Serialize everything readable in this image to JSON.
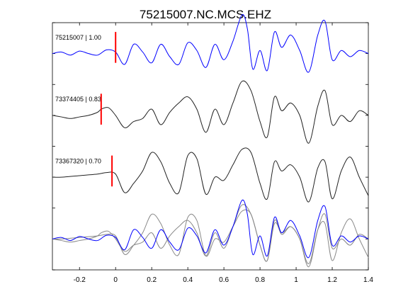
{
  "chart_data": {
    "type": "line",
    "title": "75215007.NC.MCS.EHZ",
    "xlabel": "",
    "ylabel": "",
    "xlim": [
      -0.35,
      1.4
    ],
    "ylim": [
      0,
      8
    ],
    "x_ticks": [
      -0.2,
      0,
      0.2,
      0.4,
      0.6,
      0.8,
      1,
      1.2,
      1.4
    ],
    "x_tick_labels": [
      "-0.2",
      "0",
      "0.2",
      "0.4",
      "0.6",
      "0.8",
      "1",
      "1.2",
      "1.4"
    ],
    "y_tick_count": 9,
    "grid": false,
    "legend": "none",
    "colors": {
      "primary": "#0000ff",
      "secondary": "#222222",
      "overlay": "#888888",
      "pick": "#ff0000"
    },
    "traces": [
      {
        "label": "75215007 | 1.00",
        "color": "#0000ff",
        "baseline": 7.0,
        "pick_time": 0.0,
        "points": [
          [
            -0.35,
            0.0
          ],
          [
            -0.3,
            0.05
          ],
          [
            -0.25,
            -0.05
          ],
          [
            -0.2,
            0.08
          ],
          [
            -0.15,
            0.0
          ],
          [
            -0.1,
            -0.05
          ],
          [
            -0.05,
            0.12
          ],
          [
            0.0,
            0.05
          ],
          [
            0.05,
            -0.35
          ],
          [
            0.1,
            0.3
          ],
          [
            0.15,
            0.05
          ],
          [
            0.2,
            -0.3
          ],
          [
            0.25,
            0.3
          ],
          [
            0.3,
            -0.1
          ],
          [
            0.35,
            -0.35
          ],
          [
            0.4,
            0.35
          ],
          [
            0.45,
            0.1
          ],
          [
            0.5,
            -0.45
          ],
          [
            0.55,
            0.3
          ],
          [
            0.6,
            -0.2
          ],
          [
            0.65,
            0.4
          ],
          [
            0.7,
            1.25
          ],
          [
            0.73,
            0.8
          ],
          [
            0.76,
            -0.5
          ],
          [
            0.8,
            0.1
          ],
          [
            0.84,
            -0.55
          ],
          [
            0.88,
            0.7
          ],
          [
            0.92,
            0.2
          ],
          [
            0.97,
            0.6
          ],
          [
            1.02,
            0.1
          ],
          [
            1.07,
            -0.6
          ],
          [
            1.12,
            0.6
          ],
          [
            1.16,
            1.05
          ],
          [
            1.2,
            -0.2
          ],
          [
            1.25,
            0.1
          ],
          [
            1.3,
            -0.1
          ],
          [
            1.35,
            0.1
          ],
          [
            1.4,
            0.0
          ]
        ]
      },
      {
        "label": "73374405 | 0.83",
        "color": "#222222",
        "baseline": 5.0,
        "pick_time": -0.08,
        "points": [
          [
            -0.35,
            0.0
          ],
          [
            -0.3,
            -0.05
          ],
          [
            -0.25,
            -0.1
          ],
          [
            -0.2,
            -0.05
          ],
          [
            -0.15,
            0.0
          ],
          [
            -0.1,
            0.1
          ],
          [
            -0.08,
            0.2
          ],
          [
            -0.04,
            0.25
          ],
          [
            0.0,
            0.0
          ],
          [
            0.05,
            -0.4
          ],
          [
            0.1,
            -0.2
          ],
          [
            0.15,
            -0.1
          ],
          [
            0.2,
            0.2
          ],
          [
            0.25,
            -0.3
          ],
          [
            0.3,
            0.1
          ],
          [
            0.35,
            0.4
          ],
          [
            0.4,
            0.6
          ],
          [
            0.45,
            0.2
          ],
          [
            0.5,
            -0.55
          ],
          [
            0.55,
            0.2
          ],
          [
            0.6,
            -0.3
          ],
          [
            0.65,
            0.4
          ],
          [
            0.7,
            1.1
          ],
          [
            0.75,
            0.8
          ],
          [
            0.8,
            -0.2
          ],
          [
            0.84,
            -0.7
          ],
          [
            0.88,
            0.6
          ],
          [
            0.92,
            0.15
          ],
          [
            0.97,
            0.4
          ],
          [
            1.02,
            0.0
          ],
          [
            1.07,
            -0.9
          ],
          [
            1.12,
            0.3
          ],
          [
            1.16,
            0.8
          ],
          [
            1.2,
            -0.3
          ],
          [
            1.25,
            0.0
          ],
          [
            1.3,
            -0.2
          ],
          [
            1.35,
            0.15
          ],
          [
            1.4,
            0.0
          ]
        ]
      },
      {
        "label": "73367320 | 0.70",
        "color": "#222222",
        "baseline": 3.0,
        "pick_time": -0.02,
        "points": [
          [
            -0.35,
            0.0
          ],
          [
            -0.3,
            0.0
          ],
          [
            -0.2,
            0.05
          ],
          [
            -0.1,
            0.1
          ],
          [
            -0.05,
            0.15
          ],
          [
            0.0,
            0.1
          ],
          [
            0.05,
            -0.5
          ],
          [
            0.1,
            -0.2
          ],
          [
            0.15,
            0.2
          ],
          [
            0.2,
            0.8
          ],
          [
            0.25,
            0.5
          ],
          [
            0.3,
            -0.2
          ],
          [
            0.35,
            -0.5
          ],
          [
            0.4,
            0.7
          ],
          [
            0.45,
            0.6
          ],
          [
            0.5,
            -0.55
          ],
          [
            0.55,
            0.0
          ],
          [
            0.6,
            -0.1
          ],
          [
            0.65,
            0.4
          ],
          [
            0.7,
            0.9
          ],
          [
            0.75,
            0.8
          ],
          [
            0.8,
            -0.2
          ],
          [
            0.84,
            -0.7
          ],
          [
            0.88,
            0.5
          ],
          [
            0.92,
            0.2
          ],
          [
            0.97,
            0.4
          ],
          [
            1.02,
            0.0
          ],
          [
            1.07,
            -0.8
          ],
          [
            1.12,
            0.3
          ],
          [
            1.16,
            0.5
          ],
          [
            1.2,
            -0.7
          ],
          [
            1.25,
            0.2
          ],
          [
            1.3,
            0.65
          ],
          [
            1.35,
            0.0
          ],
          [
            1.4,
            -0.6
          ]
        ]
      },
      {
        "label": "",
        "color": "#0000ff",
        "baseline": 1.0,
        "pick_time": null,
        "points": [
          [
            -0.35,
            0.0
          ],
          [
            -0.3,
            0.05
          ],
          [
            -0.25,
            -0.05
          ],
          [
            -0.2,
            0.08
          ],
          [
            -0.15,
            0.0
          ],
          [
            -0.1,
            -0.05
          ],
          [
            -0.05,
            0.12
          ],
          [
            0.0,
            0.05
          ],
          [
            0.05,
            -0.35
          ],
          [
            0.1,
            0.3
          ],
          [
            0.15,
            0.05
          ],
          [
            0.2,
            -0.3
          ],
          [
            0.25,
            0.3
          ],
          [
            0.3,
            -0.1
          ],
          [
            0.35,
            -0.35
          ],
          [
            0.4,
            0.35
          ],
          [
            0.45,
            0.1
          ],
          [
            0.5,
            -0.45
          ],
          [
            0.55,
            0.3
          ],
          [
            0.6,
            -0.2
          ],
          [
            0.65,
            0.4
          ],
          [
            0.7,
            1.25
          ],
          [
            0.73,
            0.8
          ],
          [
            0.76,
            -0.5
          ],
          [
            0.8,
            0.1
          ],
          [
            0.84,
            -0.55
          ],
          [
            0.88,
            0.7
          ],
          [
            0.92,
            0.2
          ],
          [
            0.97,
            0.6
          ],
          [
            1.02,
            0.1
          ],
          [
            1.07,
            -0.6
          ],
          [
            1.12,
            0.6
          ],
          [
            1.16,
            1.05
          ],
          [
            1.2,
            -0.2
          ],
          [
            1.25,
            0.1
          ],
          [
            1.3,
            -0.1
          ],
          [
            1.35,
            0.1
          ],
          [
            1.4,
            0.0
          ]
        ],
        "overlays": [
          [
            [
              -0.35,
              0.0
            ],
            [
              -0.3,
              -0.05
            ],
            [
              -0.25,
              -0.1
            ],
            [
              -0.2,
              -0.05
            ],
            [
              -0.15,
              0.0
            ],
            [
              -0.1,
              0.1
            ],
            [
              -0.08,
              0.2
            ],
            [
              -0.04,
              0.25
            ],
            [
              0.0,
              0.0
            ],
            [
              0.05,
              -0.4
            ],
            [
              0.1,
              -0.2
            ],
            [
              0.15,
              -0.1
            ],
            [
              0.2,
              0.2
            ],
            [
              0.25,
              -0.3
            ],
            [
              0.3,
              0.1
            ],
            [
              0.35,
              0.4
            ],
            [
              0.4,
              0.6
            ],
            [
              0.45,
              0.2
            ],
            [
              0.5,
              -0.55
            ],
            [
              0.55,
              0.2
            ],
            [
              0.6,
              -0.3
            ],
            [
              0.65,
              0.4
            ],
            [
              0.7,
              1.1
            ],
            [
              0.75,
              0.8
            ],
            [
              0.8,
              -0.2
            ],
            [
              0.84,
              -0.7
            ],
            [
              0.88,
              0.6
            ],
            [
              0.92,
              0.15
            ],
            [
              0.97,
              0.4
            ],
            [
              1.02,
              0.0
            ],
            [
              1.07,
              -0.9
            ],
            [
              1.12,
              0.3
            ],
            [
              1.16,
              0.8
            ],
            [
              1.2,
              -0.3
            ],
            [
              1.25,
              0.0
            ],
            [
              1.3,
              -0.2
            ],
            [
              1.35,
              0.15
            ],
            [
              1.4,
              0.0
            ]
          ],
          [
            [
              -0.35,
              0.0
            ],
            [
              -0.3,
              0.0
            ],
            [
              -0.2,
              0.05
            ],
            [
              -0.1,
              0.1
            ],
            [
              -0.05,
              0.15
            ],
            [
              0.0,
              0.1
            ],
            [
              0.05,
              -0.5
            ],
            [
              0.1,
              -0.2
            ],
            [
              0.15,
              0.2
            ],
            [
              0.2,
              0.8
            ],
            [
              0.25,
              0.5
            ],
            [
              0.3,
              -0.2
            ],
            [
              0.35,
              -0.5
            ],
            [
              0.4,
              0.7
            ],
            [
              0.45,
              0.6
            ],
            [
              0.5,
              -0.55
            ],
            [
              0.55,
              0.0
            ],
            [
              0.6,
              -0.1
            ],
            [
              0.65,
              0.4
            ],
            [
              0.7,
              0.9
            ],
            [
              0.75,
              0.8
            ],
            [
              0.8,
              -0.2
            ],
            [
              0.84,
              -0.7
            ],
            [
              0.88,
              0.5
            ],
            [
              0.92,
              0.2
            ],
            [
              0.97,
              0.4
            ],
            [
              1.02,
              0.0
            ],
            [
              1.07,
              -0.8
            ],
            [
              1.12,
              0.3
            ],
            [
              1.16,
              0.5
            ],
            [
              1.2,
              -0.7
            ],
            [
              1.25,
              0.2
            ],
            [
              1.3,
              0.65
            ],
            [
              1.35,
              0.0
            ],
            [
              1.4,
              -0.6
            ]
          ]
        ]
      }
    ]
  }
}
